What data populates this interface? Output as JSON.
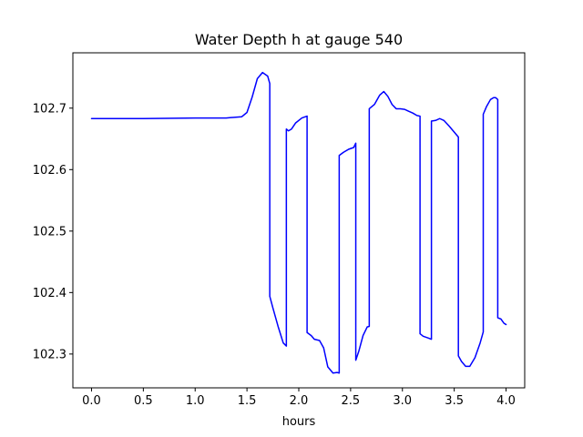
{
  "chart_data": {
    "type": "line",
    "title": "Water Depth h at gauge 540",
    "xlabel": "hours",
    "ylabel": "",
    "xlim": [
      -0.18,
      4.18
    ],
    "ylim": [
      102.245,
      102.79
    ],
    "xticks": [
      0.0,
      0.5,
      1.0,
      1.5,
      2.0,
      2.5,
      3.0,
      3.5,
      4.0
    ],
    "xtick_labels": [
      "0.0",
      "0.5",
      "1.0",
      "1.5",
      "2.0",
      "2.5",
      "3.0",
      "3.5",
      "4.0"
    ],
    "yticks": [
      102.3,
      102.4,
      102.5,
      102.6,
      102.7
    ],
    "ytick_labels": [
      "102.3",
      "102.4",
      "102.5",
      "102.6",
      "102.7"
    ],
    "grid": false,
    "legend": "none",
    "series": [
      {
        "color": "#0000ff",
        "x": [
          0.0,
          0.5,
          1.0,
          1.3,
          1.45,
          1.5,
          1.55,
          1.6,
          1.65,
          1.7,
          1.72,
          1.72,
          1.75,
          1.8,
          1.85,
          1.88,
          1.88,
          1.9,
          1.93,
          1.97,
          2.03,
          2.08,
          2.08,
          2.12,
          2.15,
          2.2,
          2.24,
          2.28,
          2.33,
          2.37,
          2.39,
          2.39,
          2.43,
          2.48,
          2.53,
          2.55,
          2.55,
          2.58,
          2.62,
          2.66,
          2.68,
          2.68,
          2.73,
          2.78,
          2.82,
          2.86,
          2.9,
          2.94,
          2.98,
          3.02,
          3.06,
          3.1,
          3.14,
          3.17,
          3.17,
          3.2,
          3.25,
          3.28,
          3.28,
          3.32,
          3.36,
          3.4,
          3.45,
          3.5,
          3.54,
          3.54,
          3.57,
          3.61,
          3.65,
          3.7,
          3.75,
          3.78,
          3.78,
          3.81,
          3.85,
          3.88,
          3.9,
          3.92,
          3.92,
          3.95,
          3.98,
          4.0
        ],
        "y": [
          102.683,
          102.683,
          102.684,
          102.684,
          102.686,
          102.693,
          102.718,
          102.748,
          102.758,
          102.752,
          102.74,
          102.394,
          102.375,
          102.345,
          102.318,
          102.313,
          102.666,
          102.663,
          102.666,
          102.676,
          102.684,
          102.687,
          102.335,
          102.33,
          102.324,
          102.322,
          102.31,
          102.279,
          102.269,
          102.27,
          102.269,
          102.623,
          102.628,
          102.633,
          102.636,
          102.643,
          102.29,
          102.305,
          102.33,
          102.344,
          102.345,
          102.699,
          102.706,
          102.721,
          102.727,
          102.719,
          102.706,
          102.699,
          102.699,
          102.698,
          102.695,
          102.692,
          102.688,
          102.687,
          102.333,
          102.329,
          102.326,
          102.324,
          102.679,
          102.68,
          102.683,
          102.68,
          102.671,
          102.661,
          102.653,
          102.297,
          102.288,
          102.28,
          102.28,
          102.294,
          102.318,
          102.336,
          102.69,
          102.702,
          102.714,
          102.717,
          102.717,
          102.714,
          102.359,
          102.357,
          102.35,
          102.348
        ]
      }
    ]
  }
}
